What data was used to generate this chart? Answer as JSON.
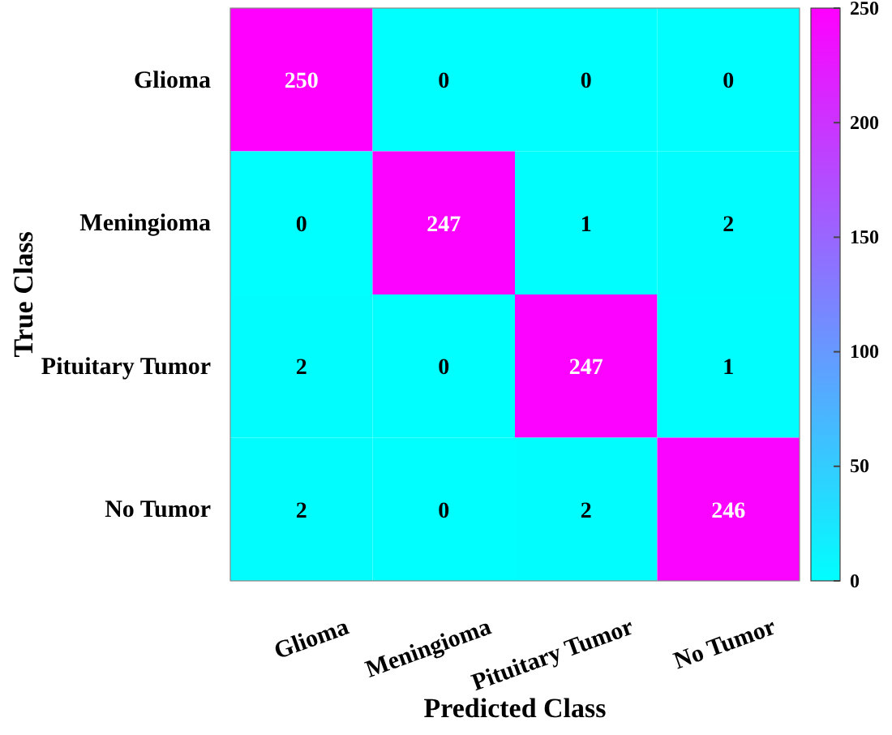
{
  "chart_data": {
    "type": "heatmap",
    "xlabel": "Predicted Class",
    "ylabel": "True Class",
    "categories": [
      "Glioma",
      "Meningioma",
      "Pituitary Tumor",
      "No Tumor"
    ],
    "y_categories": [
      "Glioma",
      "Meningioma",
      "Pituitary Tumor",
      "No Tumor"
    ],
    "cells": [
      [
        250,
        0,
        0,
        0
      ],
      [
        0,
        247,
        1,
        2
      ],
      [
        2,
        0,
        247,
        1
      ],
      [
        2,
        0,
        2,
        246
      ]
    ],
    "data_labels": true,
    "clim": [
      0,
      250
    ],
    "cticks": [
      0,
      50,
      100,
      150,
      200,
      250
    ]
  }
}
